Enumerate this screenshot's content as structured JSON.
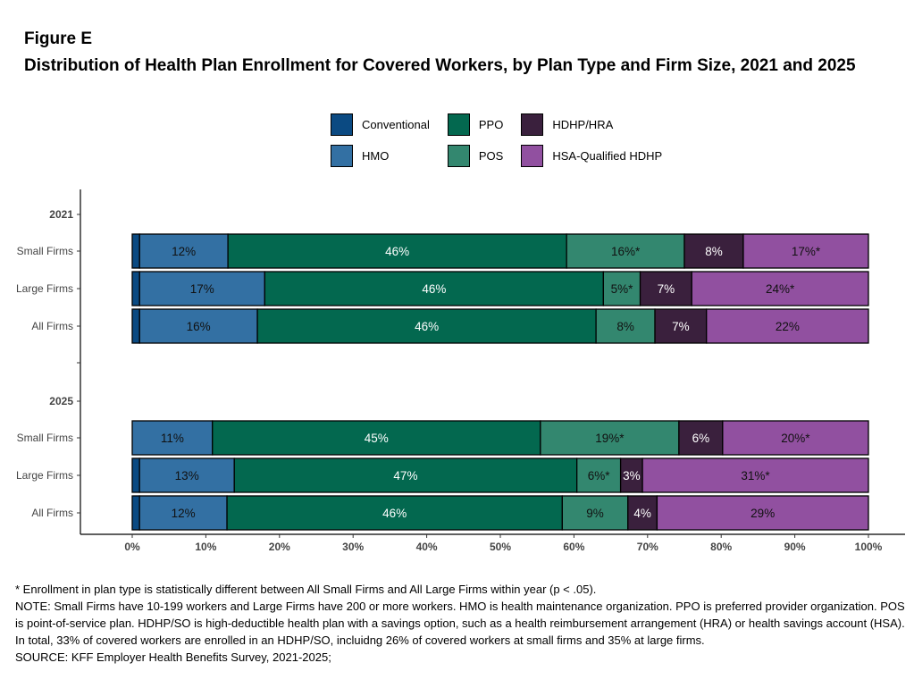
{
  "title": "Figure E",
  "subtitle": "Distribution of Health Plan Enrollment for Covered Workers, by Plan Type and Firm Size, 2021 and 2025",
  "chart_data": {
    "type": "bar",
    "orientation": "horizontal",
    "stacked": true,
    "xlim": [
      0,
      100
    ],
    "xticks": [
      "0%",
      "10%",
      "20%",
      "30%",
      "40%",
      "50%",
      "60%",
      "70%",
      "80%",
      "90%",
      "100%"
    ],
    "legend_position": "top",
    "series": [
      {
        "name": "Conventional",
        "color": "#0b4a82"
      },
      {
        "name": "HMO",
        "color": "#3370a3"
      },
      {
        "name": "PPO",
        "color": "#03684f"
      },
      {
        "name": "POS",
        "color": "#33876f"
      },
      {
        "name": "HDHP/HRA",
        "color": "#3a203d"
      },
      {
        "name": "HSA-Qualified HDHP",
        "color": "#9150a0"
      }
    ],
    "groups": [
      {
        "label": "2021",
        "rows": [
          {
            "label": "Small Firms",
            "values": [
              1,
              12,
              46,
              16,
              8,
              17
            ],
            "labels": [
              "",
              "12%",
              "46%",
              "16%*",
              "8%",
              "17%*"
            ]
          },
          {
            "label": "Large Firms",
            "values": [
              1,
              17,
              46,
              5,
              7,
              24
            ],
            "labels": [
              "",
              "17%",
              "46%",
              "5%*",
              "7%",
              "24%*"
            ]
          },
          {
            "label": "All Firms",
            "values": [
              1,
              16,
              46,
              8,
              7,
              22
            ],
            "labels": [
              "",
              "16%",
              "46%",
              "8%",
              "7%",
              "22%"
            ]
          }
        ]
      },
      {
        "label": "2025",
        "rows": [
          {
            "label": "Small Firms",
            "values": [
              0,
              11,
              45,
              19,
              6,
              20
            ],
            "labels": [
              "",
              "11%",
              "45%",
              "19%*",
              "6%",
              "20%*"
            ]
          },
          {
            "label": "Large Firms",
            "values": [
              1,
              13,
              47,
              6,
              3,
              31
            ],
            "labels": [
              "",
              "13%",
              "47%",
              "6%*",
              "3%",
              "31%*"
            ]
          },
          {
            "label": "All Firms",
            "values": [
              1,
              12,
              46,
              9,
              4,
              29
            ],
            "labels": [
              "",
              "12%",
              "46%",
              "9%",
              "4%",
              "29%"
            ]
          }
        ]
      }
    ]
  },
  "notes": [
    "* Enrollment in plan type is statistically different between All Small Firms and All Large Firms within year (p < .05).",
    "NOTE: Small Firms have 10-199 workers and Large Firms have 200 or more workers. HMO is health maintenance organization. PPO is preferred provider organization. POS is point-of-service plan. HDHP/SO is high-deductible health plan with a savings option, such as a health reimbursement arrangement (HRA) or health savings account (HSA). In total, 33% of covered workers are enrolled in an HDHP/SO, incluidng 26% of covered workers at small firms and 35% at large firms.",
    "SOURCE: KFF Employer Health Benefits Survey, 2021-2025;"
  ]
}
